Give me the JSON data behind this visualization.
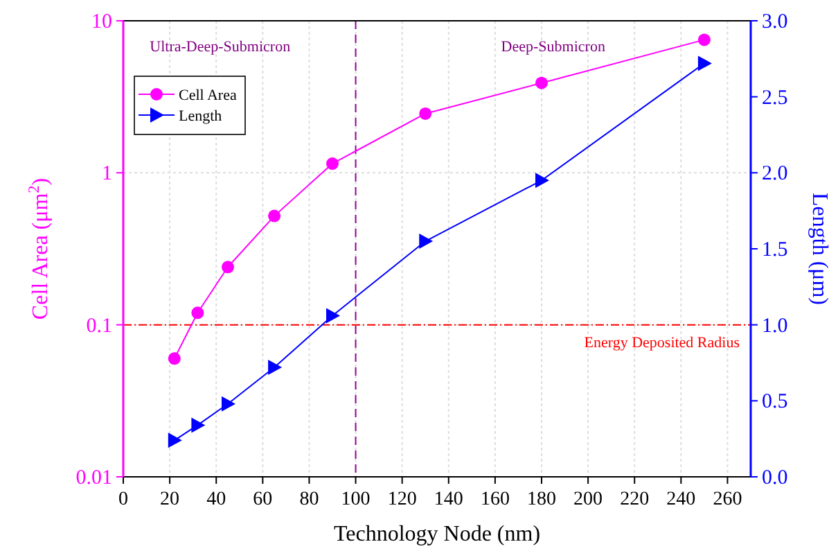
{
  "chart_data": {
    "type": "line",
    "xlabel": "Technology Node (nm)",
    "ylabel": "Cell Area (μm$^{2}$)",
    "y2label": "Length (μm)",
    "x": [
      22,
      32,
      45,
      65,
      90,
      130,
      180,
      250
    ],
    "series": [
      {
        "name": "Cell Area",
        "color": "#ff00ff",
        "marker": "circle",
        "values": [
          0.06,
          0.12,
          0.24,
          0.52,
          1.15,
          2.45,
          3.9,
          7.5
        ]
      },
      {
        "name": "Length",
        "color": "#0000ff",
        "marker": "triangle",
        "axis": "y2",
        "values": [
          0.24,
          0.34,
          0.48,
          0.72,
          1.06,
          1.55,
          1.95,
          2.72
        ]
      }
    ],
    "xlim": [
      0,
      270
    ],
    "xticks": [
      0,
      20,
      40,
      60,
      80,
      100,
      120,
      140,
      160,
      180,
      200,
      220,
      240,
      260
    ],
    "ylim": [
      0.01,
      10
    ],
    "yticks": [
      0.01,
      0.1,
      1,
      10
    ],
    "log": "y",
    "y2lim": [
      0,
      3
    ],
    "y2ticks": [
      {
        "value": 0,
        "label": "0.0"
      },
      0.5,
      {
        "value": 1,
        "label": "1.0"
      },
      1.5,
      {
        "value": 2,
        "label": "2.0"
      },
      2.5,
      {
        "value": 3,
        "label": "3.0"
      }
    ],
    "ref_lines": [
      {
        "axis": "x",
        "value": 100,
        "label": null,
        "color": "#990099",
        "line_style": "dashed"
      },
      {
        "axis": "y2",
        "value": 1,
        "label": "Energy Deposited Radius",
        "color": "#ff0000",
        "line_style": "dashdot"
      }
    ],
    "annotations": [
      "Ultra-Deep-Submicron",
      "Deep-Submicron"
    ],
    "grid": true,
    "legend": "top left",
    "line_style": "solid"
  }
}
